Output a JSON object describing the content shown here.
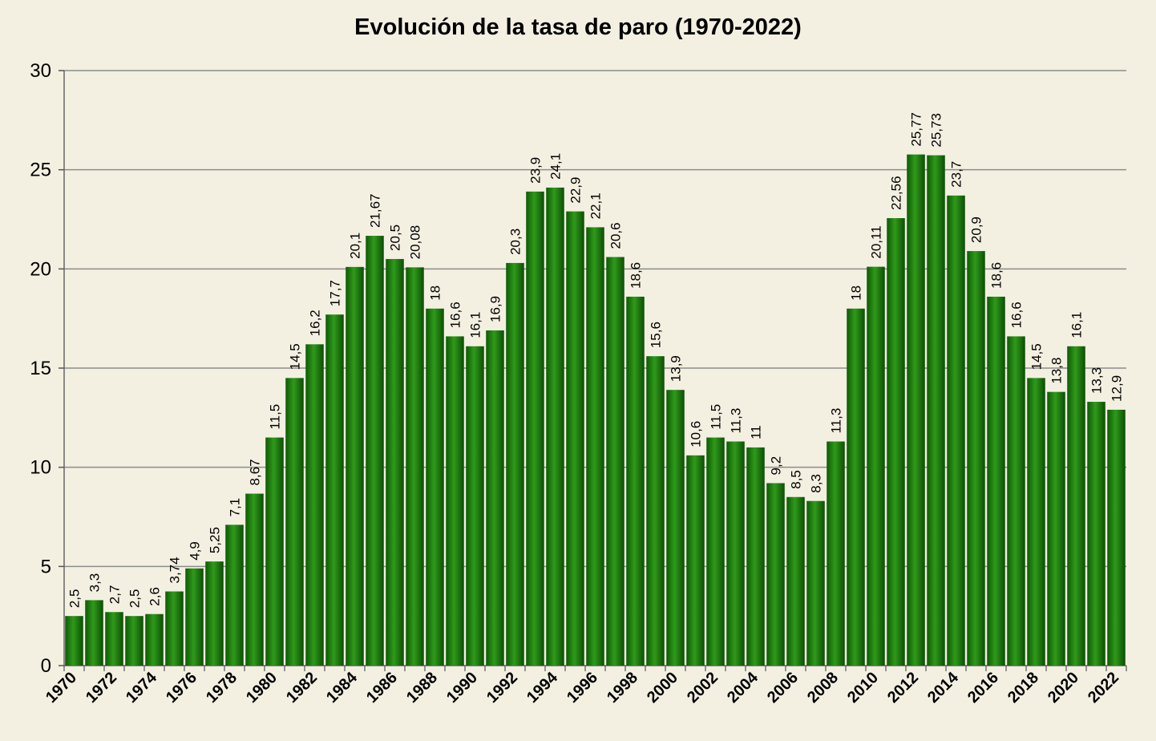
{
  "chart_data": {
    "type": "bar",
    "title": "Evolución de la tasa de paro (1970-2022)",
    "xlabel": "",
    "ylabel": "",
    "ylim": [
      0,
      30
    ],
    "yticks": [
      "0",
      "5",
      "10",
      "15",
      "20",
      "25",
      "30"
    ],
    "grid": true,
    "bar_color": "#1a7a0c",
    "categories": [
      "1970",
      "1971",
      "1972",
      "1973",
      "1974",
      "1975",
      "1976",
      "1977",
      "1978",
      "1979",
      "1980",
      "1981",
      "1982",
      "1983",
      "1984",
      "1985",
      "1986",
      "1987",
      "1988",
      "1989",
      "1990",
      "1991",
      "1992",
      "1993",
      "1994",
      "1995",
      "1996",
      "1997",
      "1998",
      "1999",
      "2000",
      "2001",
      "2002",
      "2003",
      "2004",
      "2005",
      "2006",
      "2007",
      "2008",
      "2009",
      "2010",
      "2011",
      "2012",
      "2013",
      "2014",
      "2015",
      "2016",
      "2017",
      "2018",
      "2019",
      "2020",
      "2021",
      "2022"
    ],
    "values": [
      2.5,
      3.3,
      2.7,
      2.5,
      2.6,
      3.74,
      4.9,
      5.25,
      7.1,
      8.67,
      11.5,
      14.5,
      16.2,
      17.7,
      20.1,
      21.67,
      20.5,
      20.08,
      18,
      16.6,
      16.1,
      16.9,
      20.3,
      23.9,
      24.1,
      22.9,
      22.1,
      20.6,
      18.6,
      15.6,
      13.9,
      10.6,
      11.5,
      11.3,
      11,
      9.2,
      8.5,
      8.3,
      11.3,
      18,
      20.11,
      22.56,
      25.77,
      25.73,
      23.7,
      20.9,
      18.6,
      16.6,
      14.5,
      13.8,
      16.1,
      13.3,
      12.9
    ],
    "data_labels": [
      "2,5",
      "3,3",
      "2,7",
      "2,5",
      "2,6",
      "3,74",
      "4,9",
      "5,25",
      "7,1",
      "8,67",
      "11,5",
      "14,5",
      "16,2",
      "17,7",
      "20,1",
      "21,67",
      "20,5",
      "20,08",
      "18",
      "16,6",
      "16,1",
      "16,9",
      "20,3",
      "23,9",
      "24,1",
      "22,9",
      "22,1",
      "20,6",
      "18,6",
      "15,6",
      "13,9",
      "10,6",
      "11,5",
      "11,3",
      "11",
      "9,2",
      "8,5",
      "8,3",
      "11,3",
      "18",
      "20,11",
      "22,56",
      "25,77",
      "25,73",
      "23,7",
      "20,9",
      "18,6",
      "16,6",
      "14,5",
      "13,8",
      "16,1",
      "13,3",
      "12,9"
    ],
    "xtick_labels": [
      "1970",
      "1972",
      "1974",
      "1976",
      "1978",
      "1980",
      "1982",
      "1984",
      "1986",
      "1988",
      "1990",
      "1992",
      "1994",
      "1996",
      "1998",
      "2000",
      "2002",
      "2004",
      "2006",
      "2008",
      "2010",
      "2012",
      "2014",
      "2016",
      "2018",
      "2020",
      "2022"
    ]
  }
}
